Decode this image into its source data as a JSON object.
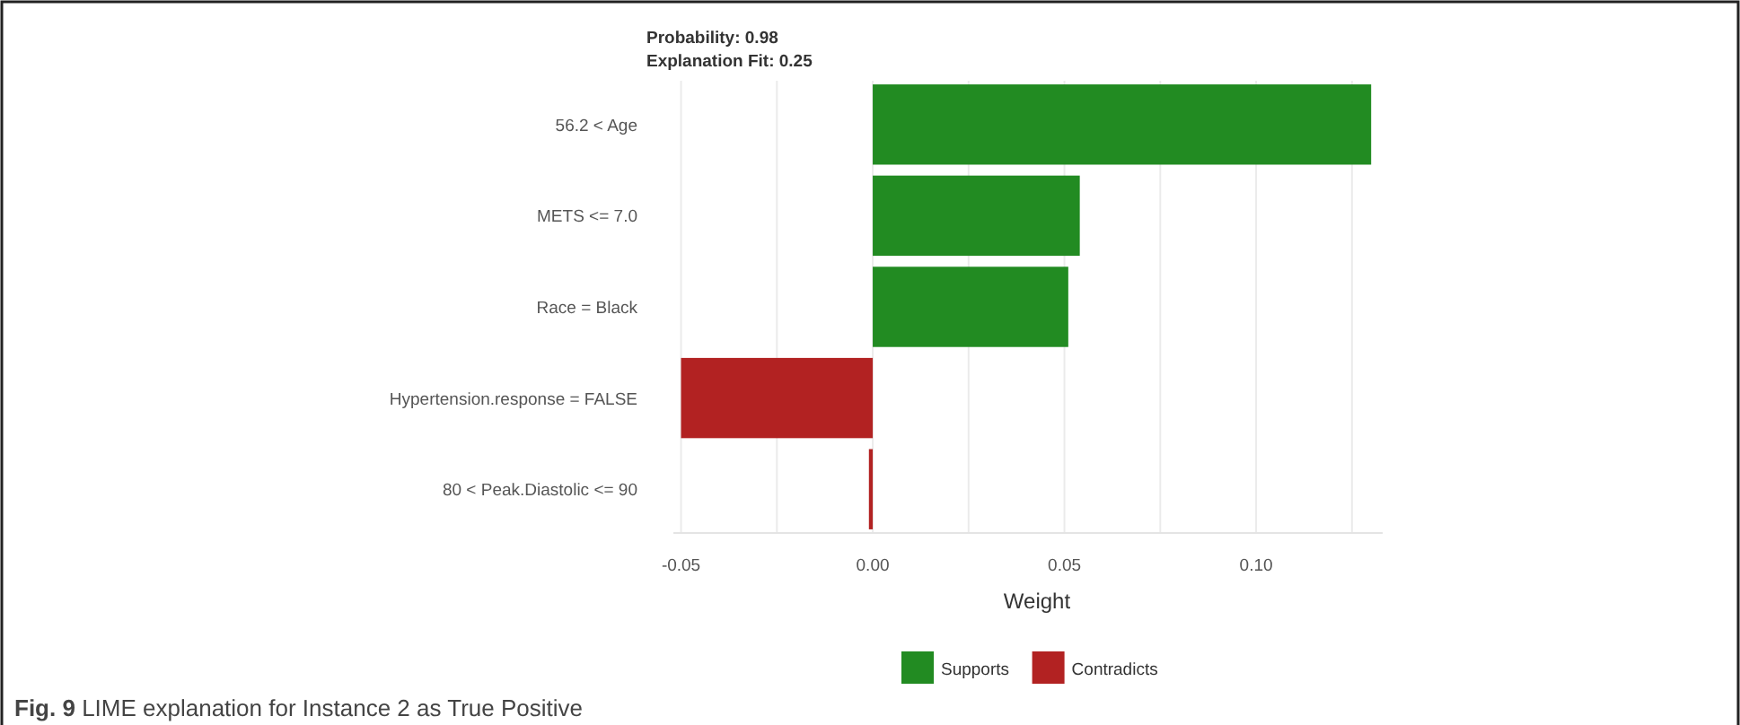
{
  "chart_data": {
    "type": "bar",
    "orientation": "horizontal",
    "stacked": true,
    "title": "Probability: 0.98",
    "subtitle": "Explanation Fit: 0.25",
    "categories": [
      "56.2 < Age",
      "METS <= 7.0",
      "Race = Black",
      "Hypertension.response = FALSE",
      "80 < Peak.Diastolic <= 90"
    ],
    "series": [
      {
        "name": "Supports",
        "color": "#228b22",
        "values": [
          0.13,
          0.054,
          0.051,
          null,
          null
        ]
      },
      {
        "name": "Contradicts",
        "color": "#b22222",
        "values": [
          null,
          null,
          null,
          -0.05,
          -0.001
        ]
      }
    ],
    "xlabel": "Weight",
    "xlim": [
      -0.052,
      0.133
    ],
    "xticks": [
      {
        "value": -0.05,
        "label": "-0.05"
      },
      {
        "value": -0.025,
        "label": null
      },
      {
        "value": 0,
        "label": "0.00"
      },
      {
        "value": 0.025,
        "label": null
      },
      {
        "value": 0.05,
        "label": "0.05"
      },
      {
        "value": 0.075,
        "label": null
      },
      {
        "value": 0.1,
        "label": "0.10"
      },
      {
        "value": 0.125,
        "label": null
      }
    ],
    "grid": "x",
    "legend": "bottom",
    "annotations": [
      "Fig. 9 LIME explanation for Instance 2 as True Positive"
    ]
  }
}
